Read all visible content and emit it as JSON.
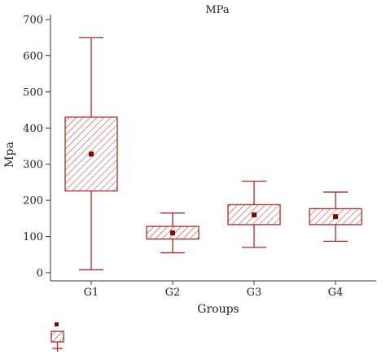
{
  "chart_data": {
    "type": "boxplot",
    "title": "MPa",
    "xlabel": "Groups",
    "ylabel": "Mpa",
    "ylim": [
      0,
      700
    ],
    "yticks": [
      0,
      100,
      200,
      300,
      400,
      500,
      600,
      700
    ],
    "grid": false,
    "categories": [
      "G1",
      "G2",
      "G3",
      "G4"
    ],
    "series": [
      {
        "category": "G1",
        "min": 8,
        "q1": 226,
        "q3": 430,
        "max": 650,
        "mean": 328
      },
      {
        "category": "G2",
        "min": 55,
        "q1": 93,
        "q3": 128,
        "max": 165,
        "mean": 110
      },
      {
        "category": "G3",
        "min": 70,
        "q1": 133,
        "q3": 188,
        "max": 253,
        "mean": 160
      },
      {
        "category": "G4",
        "min": 87,
        "q1": 133,
        "q3": 177,
        "max": 223,
        "mean": 155
      }
    ],
    "colors": {
      "stroke": "#a52a2a",
      "mean": "#8b0000",
      "axis": "#333333"
    }
  }
}
